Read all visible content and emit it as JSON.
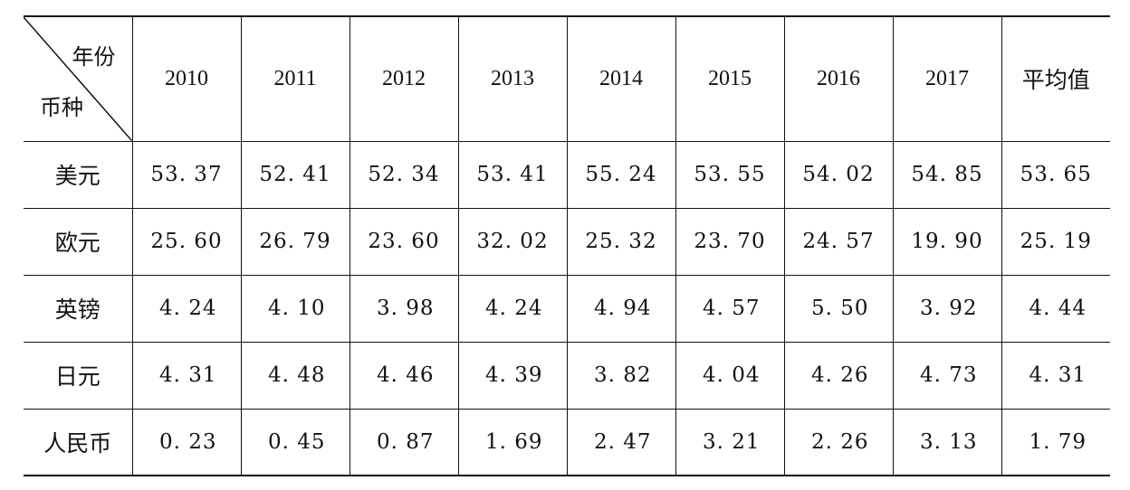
{
  "table": {
    "corner": {
      "column_axis_label": "年份",
      "row_axis_label": "币种"
    },
    "columns": [
      "2010",
      "2011",
      "2012",
      "2013",
      "2014",
      "2015",
      "2016",
      "2017",
      "平均值"
    ],
    "rows": [
      {
        "label": "美元",
        "values": [
          "53. 37",
          "52. 41",
          "52. 34",
          "53. 41",
          "55. 24",
          "53. 55",
          "54. 02",
          "54. 85",
          "53. 65"
        ]
      },
      {
        "label": "欧元",
        "values": [
          "25. 60",
          "26. 79",
          "23. 60",
          "32. 02",
          "25. 32",
          "23. 70",
          "24. 57",
          "19. 90",
          "25. 19"
        ]
      },
      {
        "label": "英镑",
        "values": [
          "4. 24",
          "4. 10",
          "3. 98",
          "4. 24",
          "4. 94",
          "4. 57",
          "5. 50",
          "3. 92",
          "4. 44"
        ]
      },
      {
        "label": "日元",
        "values": [
          "4. 31",
          "4. 48",
          "4. 46",
          "4. 39",
          "3. 82",
          "4. 04",
          "4. 26",
          "4. 73",
          "4. 31"
        ]
      },
      {
        "label": "人民币",
        "values": [
          "0. 23",
          "0. 45",
          "0. 87",
          "1. 69",
          "2. 47",
          "3. 21",
          "2. 26",
          "3. 13",
          "1. 79"
        ]
      }
    ]
  }
}
